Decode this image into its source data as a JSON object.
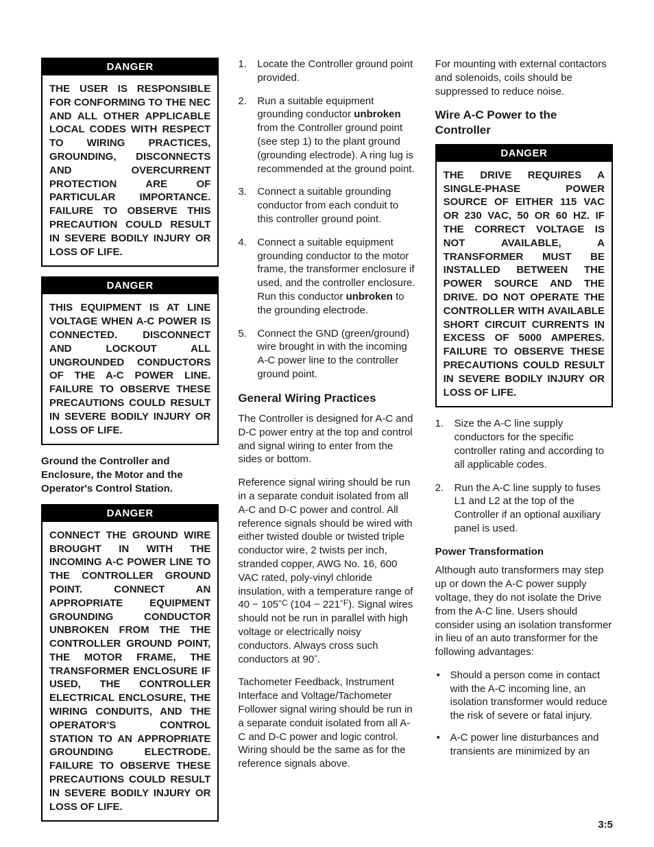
{
  "page_number": "3:5",
  "colors": {
    "text": "#1a1a1a",
    "background": "#ffffff",
    "danger_bg": "#000000",
    "danger_fg": "#ffffff",
    "border": "#000000"
  },
  "typography": {
    "body_pt": 11,
    "heading_pt": 13,
    "danger_head_pt": 11,
    "font_family": "Helvetica/Arial"
  },
  "left": {
    "danger1": {
      "title": "DANGER",
      "body": "THE USER IS RESPONSIBLE FOR CONFORMING TO THE NEC AND ALL OTHER APPLICABLE LOCAL CODES WITH RESPECT TO WIRING PRACTICES, GROUNDING, DISCONNECTS AND OVERCURRENT PROTECTION ARE OF PARTICULAR IMPORTANCE. FAILURE TO OBSERVE THIS PRECAUTION COULD RESULT IN SEVERE BODILY INJURY OR LOSS OF LIFE."
    },
    "danger2": {
      "title": "DANGER",
      "body": "THIS EQUIPMENT IS AT LINE VOLTAGE WHEN A-C POWER IS CONNECTED. DISCONNECT AND LOCKOUT ALL UNGROUNDED CONDUCTORS OF THE A-C POWER LINE. FAILURE TO OBSERVE THESE PRECAUTIONS COULD RESULT IN SEVERE BODILY INJURY OR LOSS OF LIFE."
    },
    "lead": "Ground the Controller and Enclosure, the Motor and the Operator's Control Station.",
    "danger3": {
      "title": "DANGER",
      "body": "CONNECT THE GROUND WIRE BROUGHT IN WITH THE INCOMING A-C POWER LINE TO THE CONTROLLER GROUND POINT. CONNECT AN APPROPRIATE EQUIPMENT GROUNDING CONDUCTOR UNBROKEN FROM THE THE CONTROLLER GROUND POINT, THE MOTOR FRAME, THE TRANSFORMER ENCLOSURE IF USED, THE CONTROLLER ELECTRICAL ENCLOSURE, THE WIRING CONDUITS, AND THE OPERATOR'S CONTROL STATION TO AN APPROPRIATE GROUNDING ELECTRODE. FAILURE TO OBSERVE THESE PRECAUTIONS COULD RESULT IN SEVERE BODILY INJURY OR LOSS OF LIFE."
    }
  },
  "center": {
    "steps": {
      "s1": "Locate the Controller ground point provided.",
      "s2_pre": "Run a suitable equipment grounding conductor ",
      "s2_bold": "unbroken",
      "s2_post": " from the Controller ground point (see step 1) to the plant ground (grounding electrode). A ring lug is recommended at the ground point.",
      "s3": "Connect a suitable grounding conductor from each conduit to this controller ground point.",
      "s4_pre": "Connect a suitable equipment grounding conductor to the motor frame, the transformer enclosure if used, and the controller enclosure. Run this conductor ",
      "s4_bold": "unbroken",
      "s4_post": " to the grounding electrode.",
      "s5": "Connect the GND (green/ground) wire brought in with the incoming A-C power line to the controller ground point."
    },
    "h_general": "General Wiring Practices",
    "p1": "The Controller is designed for A-C and D-C power entry at the top and control and signal wiring to enter from the sides or bottom.",
    "p2_pre": "Reference signal wiring should be run in a separate conduit isolated from all A-C and D-C power and control. All reference signals should be wired with either twisted double or twisted triple conductor wire, 2 twists per inch, stranded copper, AWG No. 16, 600 VAC rated, poly-vinyl chloride insulation, with a temperature range of 40 − 105",
    "p2_degC": "°C",
    "p2_mid": " (104 − 221",
    "p2_degF": "°F",
    "p2_post1": "). Signal wires should not be run in parallel with high voltage or electrically noisy conductors. Always cross such conductors at 90",
    "p2_deg": "°",
    "p2_end": ".",
    "p3": "Tachometer Feedback, Instrument Interface and Voltage/Tachometer Follower signal wiring should be run in a separate conduit isolated from all A-C and D-C power and logic control. Wiring should be the same as for the reference signals above."
  },
  "right": {
    "p0": "For mounting with external contactors and solenoids, coils should be suppressed to reduce noise.",
    "h_wire": "Wire A-C Power to the Controller",
    "danger4": {
      "title": "DANGER",
      "body": "THE DRIVE REQUIRES A SINGLE-PHASE POWER SOURCE OF EITHER 115 VAC OR 230 VAC, 50 OR 60 HZ. IF THE CORRECT VOLTAGE IS NOT AVAILABLE, A TRANSFORMER MUST BE INSTALLED BETWEEN THE POWER SOURCE AND THE DRIVE. DO NOT OPERATE THE CONTROLLER WITH AVAILABLE SHORT CIRCUIT CURRENTS IN EXCESS OF 5000 AMPERES. FAILURE TO OBSERVE THESE PRECAUTIONS COULD RESULT IN SEVERE BODILY INJURY OR LOSS OF LIFE."
    },
    "steps": {
      "s1": "Size the A-C line supply conductors for the specific controller rating and according to all applicable codes.",
      "s2": "Run the A-C line supply to fuses L1 and L2 at the top of the Controller if an optional auxiliary panel is used."
    },
    "h_power": "Power Transformation",
    "p_power": "Although auto transformers may step up or down the A-C power supply voltage, they do not isolate the Drive from the A-C line. Users should consider using an isolation transformer in lieu of an auto transformer for the following advantages:",
    "bullets": {
      "b1": "Should a person come in contact with the A-C incoming line, an isolation transformer would reduce the risk of severe or fatal injury.",
      "b2": "A-C power line disturbances and transients are minimized by an"
    }
  }
}
